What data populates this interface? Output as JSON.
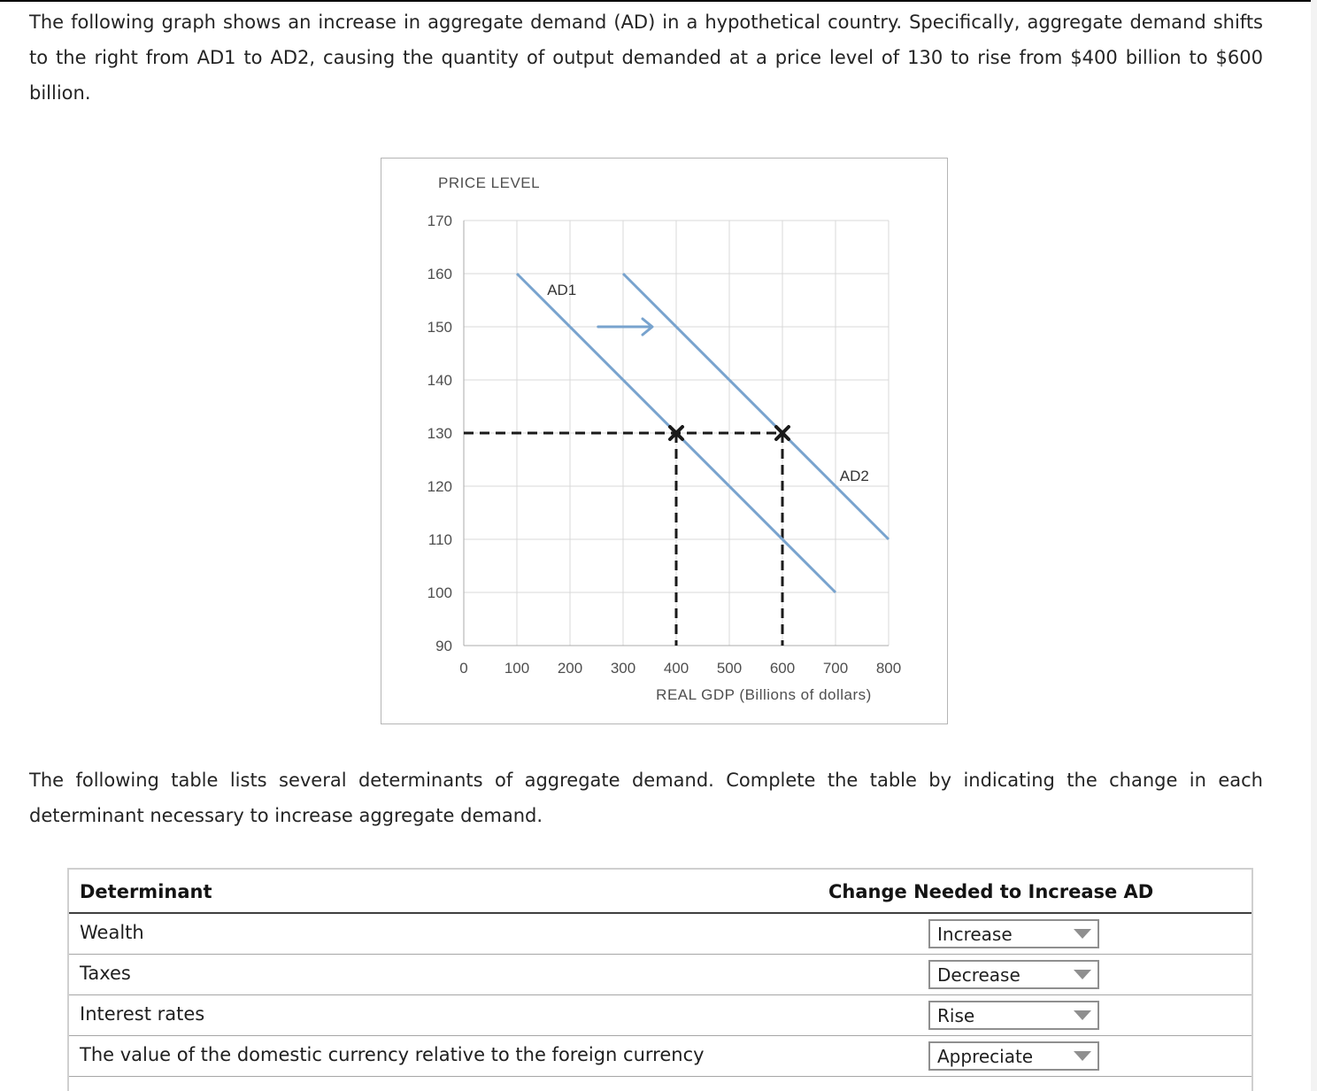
{
  "page": {
    "intro_paragraph": "The following graph shows an increase in aggregate demand (AD) in a hypothetical country. Specifically, aggregate demand shifts to the right from AD1 to AD2, causing the quantity of output demanded at a price level of 130 to rise from $400 billion to $600 billion.",
    "table_paragraph": "The following table lists several determinants of aggregate demand. Complete the table by indicating the change in each determinant necessary to increase aggregate demand."
  },
  "chart_data": {
    "type": "line",
    "title": "",
    "ylabel": "PRICE LEVEL",
    "xlabel": "REAL GDP (Billions of dollars)",
    "xlim": [
      0,
      800
    ],
    "ylim": [
      90,
      170
    ],
    "xticks": [
      0,
      100,
      200,
      300,
      400,
      500,
      600,
      700,
      800
    ],
    "yticks": [
      90,
      100,
      110,
      120,
      130,
      140,
      150,
      160,
      170
    ],
    "grid": true,
    "legend_position": "none",
    "colors": {
      "line": "#78A3CE",
      "dashed": "#1a1a1a",
      "grid": "#d9d9d9",
      "axis": "#ababab"
    },
    "series": [
      {
        "name": "AD1",
        "points": [
          [
            100,
            160
          ],
          [
            700,
            100
          ]
        ],
        "label_pos": [
          157,
          156
        ]
      },
      {
        "name": "AD2",
        "points": [
          [
            300,
            160
          ],
          [
            800,
            110
          ]
        ],
        "label_pos": [
          708,
          121
        ]
      }
    ],
    "shift_arrow": {
      "from": [
        253,
        150
      ],
      "to": [
        355,
        150
      ]
    },
    "dashed_guides": {
      "price_level": 130,
      "horizontal_to_x": 600,
      "vertical_xs": [
        400,
        600
      ]
    },
    "intersection_markers": [
      [
        400,
        130
      ],
      [
        600,
        130
      ]
    ]
  },
  "table": {
    "header": {
      "determinant": "Determinant",
      "change": "Change Needed to Increase AD"
    },
    "rows": [
      {
        "determinant": "Wealth",
        "selected": "Increase"
      },
      {
        "determinant": "Taxes",
        "selected": "Decrease"
      },
      {
        "determinant": "Interest rates",
        "selected": "Rise"
      },
      {
        "determinant": "The value of the domestic currency relative to the foreign currency",
        "selected": "Appreciate"
      }
    ]
  }
}
